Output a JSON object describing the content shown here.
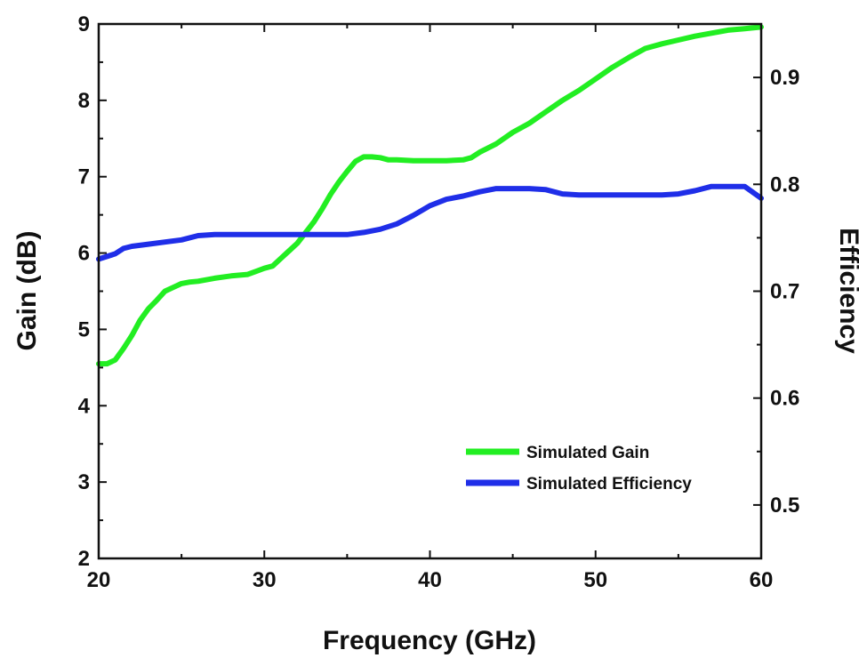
{
  "chart_data": {
    "type": "line",
    "xlabel": "Frequency (GHz)",
    "ylabel": "Gain (dB)",
    "y2label": "Efficiency",
    "xlim": [
      20,
      60
    ],
    "ylim": [
      2,
      9
    ],
    "y2lim": [
      0.45,
      0.95
    ],
    "xticks": [
      "20",
      "30",
      "40",
      "50",
      "60"
    ],
    "yticks": [
      "2",
      "3",
      "4",
      "5",
      "6",
      "7",
      "8",
      "9"
    ],
    "y2ticks": [
      "0.5",
      "0.6",
      "0.7",
      "0.8",
      "0.9"
    ],
    "grid": false,
    "legend_position": "bottom-right",
    "series": [
      {
        "name": "Simulated Gain",
        "axis": "left",
        "color": "#22ee22",
        "x": [
          20,
          20.5,
          21,
          21.5,
          22,
          22.5,
          23,
          23.5,
          24,
          24.5,
          25,
          25.5,
          26,
          27,
          28,
          29,
          29.5,
          30,
          30.5,
          31,
          31.5,
          32,
          32.5,
          33,
          33.5,
          34,
          34.5,
          35,
          35.5,
          36,
          36.5,
          37,
          37.5,
          38,
          39,
          40,
          41,
          42,
          42.5,
          43,
          44,
          45,
          46,
          47,
          48,
          49,
          50,
          51,
          52,
          53,
          54,
          55,
          56,
          57,
          58,
          59,
          60
        ],
        "values": [
          4.55,
          4.55,
          4.6,
          4.75,
          4.92,
          5.12,
          5.27,
          5.38,
          5.5,
          5.55,
          5.6,
          5.62,
          5.63,
          5.67,
          5.7,
          5.72,
          5.76,
          5.8,
          5.83,
          5.93,
          6.03,
          6.13,
          6.27,
          6.41,
          6.58,
          6.77,
          6.93,
          7.07,
          7.2,
          7.26,
          7.26,
          7.25,
          7.22,
          7.22,
          7.21,
          7.21,
          7.21,
          7.22,
          7.25,
          7.32,
          7.43,
          7.58,
          7.7,
          7.85,
          8.0,
          8.13,
          8.28,
          8.43,
          8.56,
          8.68,
          8.74,
          8.79,
          8.84,
          8.88,
          8.92,
          8.94,
          8.96
        ]
      },
      {
        "name": "Simulated Efficiency",
        "axis": "right",
        "color": "#1f2ee8",
        "x": [
          20,
          21,
          21.5,
          22,
          23,
          24,
          25,
          26,
          27,
          28,
          30,
          32,
          34,
          35,
          36,
          37,
          38,
          39,
          40,
          41,
          42,
          43,
          44,
          45,
          46,
          47,
          48,
          49,
          50,
          52,
          54,
          55,
          56,
          57,
          58,
          59,
          60
        ],
        "values": [
          0.73,
          0.735,
          0.74,
          0.742,
          0.744,
          0.746,
          0.748,
          0.752,
          0.753,
          0.753,
          0.753,
          0.753,
          0.753,
          0.753,
          0.755,
          0.758,
          0.763,
          0.771,
          0.78,
          0.786,
          0.789,
          0.793,
          0.796,
          0.796,
          0.796,
          0.795,
          0.791,
          0.79,
          0.79,
          0.79,
          0.79,
          0.791,
          0.794,
          0.798,
          0.798,
          0.798,
          0.787
        ]
      }
    ]
  }
}
